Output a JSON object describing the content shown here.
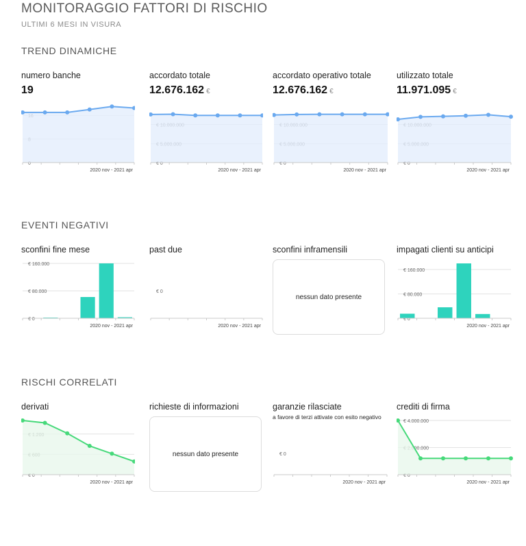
{
  "header": {
    "title": "MONITORAGGIO FATTORI DI RISCHIO",
    "subtitle": "ULTIMI 6 MESI IN VISURA"
  },
  "colors": {
    "trend": "#6aa9ef",
    "trend_fill": "#e3eefc",
    "bars": "#2ed3bd",
    "correlati": "#46d97a",
    "correlati_fill": "#e8f8ec",
    "grid": "#e2e2e2"
  },
  "sections": {
    "trend": {
      "title": "TREND DINAMICHE",
      "cards": [
        {
          "label": "numero banche",
          "value": "19",
          "unit": "",
          "period": "2020 nov - 2021 apr"
        },
        {
          "label": "accordato totale",
          "value": "12.676.162",
          "unit": "€",
          "period": "2020 nov - 2021 apr"
        },
        {
          "label": "accordato operativo totale",
          "value": "12.676.162",
          "unit": "€",
          "period": "2020 nov - 2021 apr"
        },
        {
          "label": "utilizzato totale",
          "value": "11.971.095",
          "unit": "€",
          "period": "2020 nov - 2021 apr"
        }
      ]
    },
    "eventi": {
      "title": "EVENTI NEGATIVI",
      "cards": [
        {
          "label": "sconfini fine mese",
          "period": "2020 nov - 2021 apr"
        },
        {
          "label": "past due",
          "period": "2020 nov - 2021 apr"
        },
        {
          "label": "sconfini inframensili",
          "nodata": "nessun dato presente"
        },
        {
          "label": "impagati clienti su anticipi",
          "period": "2020 nov - 2021 apr"
        }
      ]
    },
    "rischi": {
      "title": "RISCHI CORRELATI",
      "cards": [
        {
          "label": "derivati",
          "period": "2020 nov - 2021 apr"
        },
        {
          "label": "richieste di informazioni",
          "nodata": "nessun dato presente"
        },
        {
          "label": "garanzie rilasciate",
          "sublabel": "a favore di terzi attivate con esito negativo",
          "period": "2020 nov - 2021 apr"
        },
        {
          "label": "crediti di firma",
          "period": "2020 nov - 2021 apr"
        }
      ]
    }
  },
  "chart_data": [
    {
      "id": "numero-banche",
      "type": "area",
      "series": [
        {
          "values": [
            17,
            17,
            17,
            18,
            19,
            18.5
          ]
        }
      ],
      "ylim": [
        0,
        20
      ],
      "yticks": [
        0,
        8,
        16
      ],
      "ytick_labels": [
        "0",
        "8",
        "16"
      ]
    },
    {
      "id": "accordato-totale",
      "type": "area",
      "series": [
        {
          "values": [
            12650000,
            12700000,
            12400000,
            12400000,
            12400000,
            12380000
          ]
        }
      ],
      "ylim": [
        0,
        15500000
      ],
      "yticks": [
        0,
        5000000,
        10000000
      ],
      "ytick_labels": [
        "€ 0",
        "€ 5.000.000",
        "€ 10.000.000"
      ]
    },
    {
      "id": "accordato-operativo-totale",
      "type": "area",
      "series": [
        {
          "values": [
            12500000,
            12650000,
            12676162,
            12676162,
            12676162,
            12676162
          ]
        }
      ],
      "ylim": [
        0,
        15500000
      ],
      "yticks": [
        0,
        5000000,
        10000000
      ],
      "ytick_labels": [
        "€ 0",
        "€ 5.000.000",
        "€ 10.000.000"
      ]
    },
    {
      "id": "utilizzato-totale",
      "type": "area",
      "series": [
        {
          "values": [
            11350000,
            12000000,
            12150000,
            12300000,
            12550000,
            12050000
          ]
        }
      ],
      "ylim": [
        0,
        15500000
      ],
      "yticks": [
        0,
        5000000,
        10000000
      ],
      "ytick_labels": [
        "€ 0",
        "€ 5.000.000",
        "€ 10.000.000"
      ]
    },
    {
      "id": "sconfini-fine-mese",
      "type": "bar",
      "series": [
        {
          "values": [
            0,
            2000,
            0,
            62000,
            160000,
            3000
          ]
        }
      ],
      "ylim": [
        0,
        160000
      ],
      "yticks": [
        0,
        80000,
        160000
      ],
      "ytick_labels": [
        "€ 0",
        "€ 80.000",
        "€ 160.000"
      ]
    },
    {
      "id": "past-due",
      "type": "bar",
      "series": [
        {
          "values": [
            0,
            0,
            0,
            0,
            0,
            0
          ]
        }
      ],
      "ylim": [
        0,
        1
      ],
      "yticks": [
        0
      ],
      "ytick_labels": [
        "€ 0"
      ]
    },
    {
      "id": "impagati-clienti-su-anticipi",
      "type": "bar",
      "series": [
        {
          "values": [
            15000,
            0,
            36000,
            180000,
            14000,
            0
          ]
        }
      ],
      "ylim": [
        0,
        180000
      ],
      "yticks": [
        0,
        80000,
        160000
      ],
      "ytick_labels": [
        "€ 0",
        "€ 80.000",
        "€ 160.000"
      ]
    },
    {
      "id": "derivati",
      "type": "area",
      "series": [
        {
          "values": [
            1600,
            1530,
            1220,
            850,
            620,
            390
          ]
        }
      ],
      "ylim": [
        0,
        1600
      ],
      "yticks": [
        0,
        600,
        1200
      ],
      "ytick_labels": [
        "€ 0",
        "€ 600",
        "€ 1.200"
      ]
    },
    {
      "id": "garanzie-rilasciate",
      "type": "line",
      "series": [
        {
          "values": [
            0,
            0,
            0,
            0,
            0,
            0
          ]
        }
      ],
      "ylim": [
        0,
        1
      ],
      "yticks": [
        0
      ],
      "ytick_labels": [
        "€ 0"
      ]
    },
    {
      "id": "crediti-di-firma",
      "type": "area",
      "series": [
        {
          "values": [
            4000000,
            1200000,
            1200000,
            1200000,
            1200000,
            1200000
          ]
        }
      ],
      "ylim": [
        0,
        4000000
      ],
      "yticks": [
        0,
        2000000,
        4000000
      ],
      "ytick_labels": [
        "€ 0",
        "€ 2.000.000",
        "€ 4.000.000"
      ]
    }
  ]
}
